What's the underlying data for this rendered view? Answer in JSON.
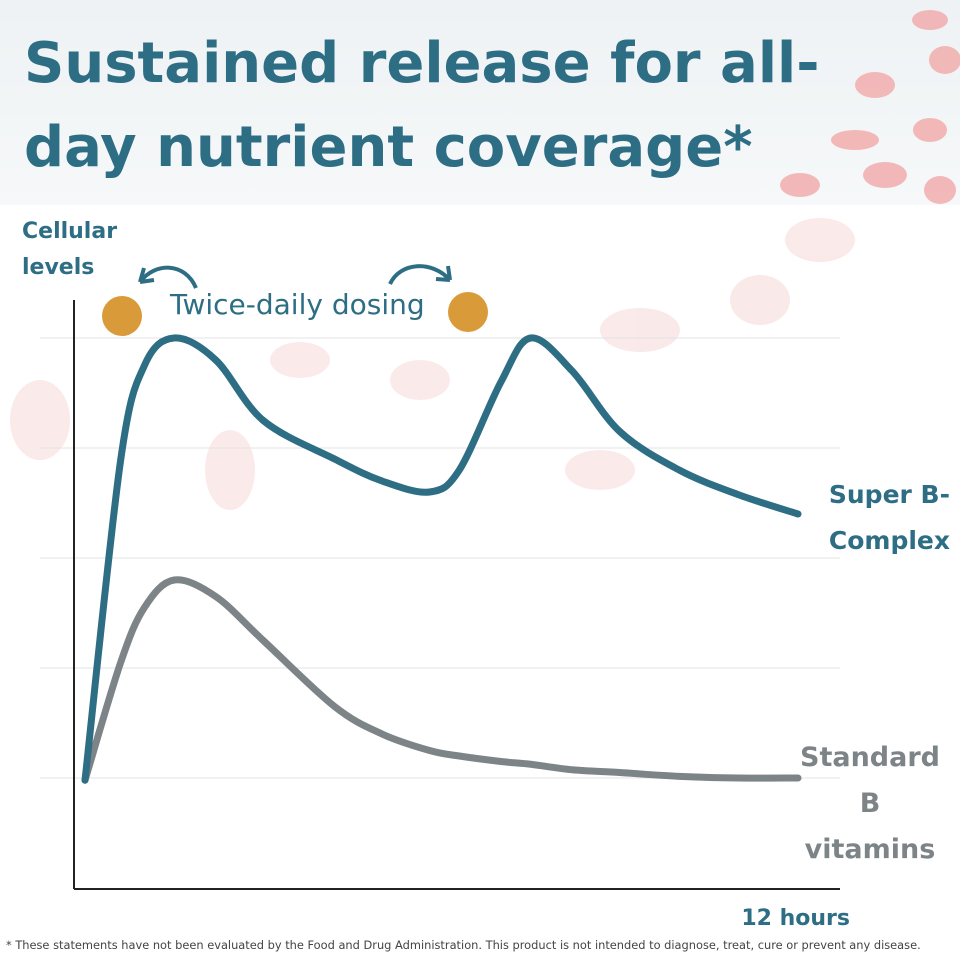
{
  "chart_data": {
    "type": "line",
    "title": "Sustained release for all-day nutrient coverage*",
    "y_label": "Cellular levels",
    "x_label": "12 hours",
    "annotation": "Twice-daily dosing",
    "footnote": "* These statements have not been evaluated by the Food and Drug Administration. This product is not intended to diagnose, treat, cure or prevent any disease.",
    "x": [
      0,
      0.6,
      1,
      1.5,
      2.2,
      3,
      4.2,
      5,
      5.8,
      6.3,
      7,
      7.5,
      8.2,
      9,
      10,
      11,
      12
    ],
    "series": [
      {
        "name": "Super B- Complex",
        "color": "#2e6e85",
        "values": [
          19.6,
          77.8,
          95,
          100,
          96,
          85,
          78,
          74,
          72,
          76,
          92,
          100,
          94,
          83,
          76,
          71.5,
          68
        ]
      },
      {
        "name": "Standard B vitamins",
        "color": "#7d8488",
        "values": [
          19.6,
          41,
          51,
          56,
          53,
          45,
          33,
          28,
          25,
          24,
          23,
          22.5,
          21.5,
          21,
          20.3,
          20,
          20
        ]
      }
    ],
    "xlim": [
      0,
      12
    ],
    "ylim": [
      0,
      100
    ],
    "grid": true
  }
}
